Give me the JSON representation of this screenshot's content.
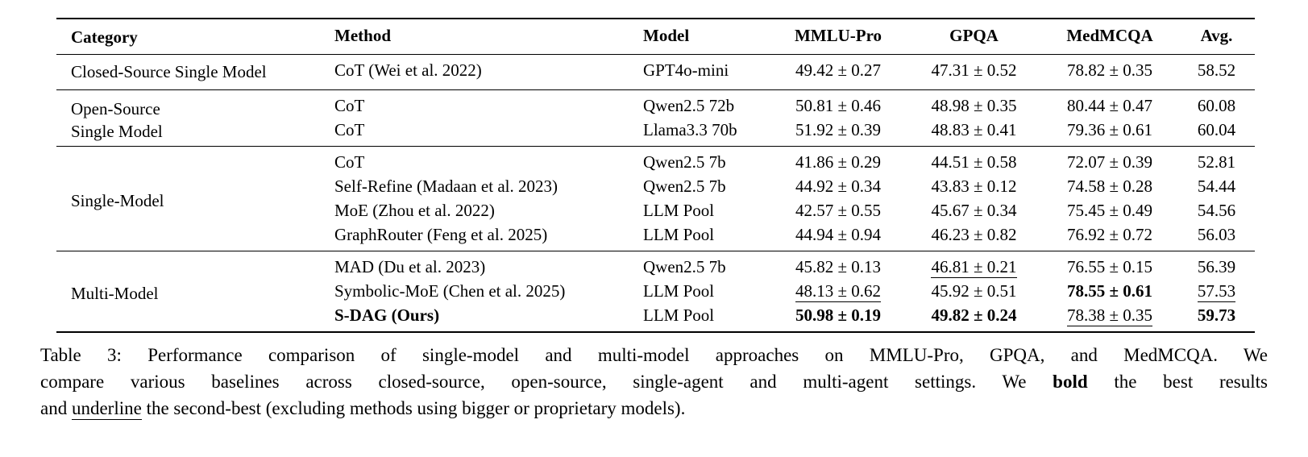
{
  "colors": {
    "background": "#ffffff",
    "text": "#000000",
    "rule": "#000000"
  },
  "table": {
    "headers": [
      "Category",
      "Method",
      "Model",
      "MMLU-Pro",
      "GPQA",
      "MedMCQA",
      "Avg."
    ],
    "groups": [
      {
        "category_lines": [
          "Closed-Source Single Model"
        ],
        "rows": [
          {
            "method": "CoT (Wei et al. 2022)",
            "method_bold": false,
            "model": "GPT4o-mini",
            "scores": [
              {
                "text": "49.42 ± 0.27",
                "bold": false,
                "underline": false
              },
              {
                "text": "47.31 ± 0.52",
                "bold": false,
                "underline": false
              },
              {
                "text": "78.82 ± 0.35",
                "bold": false,
                "underline": false
              },
              {
                "text": "58.52",
                "bold": false,
                "underline": false
              }
            ]
          }
        ]
      },
      {
        "category_lines": [
          "Open-Source",
          "Single Model"
        ],
        "rows": [
          {
            "method": "CoT",
            "method_bold": false,
            "model": "Qwen2.5 72b",
            "scores": [
              {
                "text": "50.81 ± 0.46",
                "bold": false,
                "underline": false
              },
              {
                "text": "48.98 ± 0.35",
                "bold": false,
                "underline": false
              },
              {
                "text": "80.44 ± 0.47",
                "bold": false,
                "underline": false
              },
              {
                "text": "60.08",
                "bold": false,
                "underline": false
              }
            ]
          },
          {
            "method": "CoT",
            "method_bold": false,
            "model": "Llama3.3 70b",
            "scores": [
              {
                "text": "51.92 ± 0.39",
                "bold": false,
                "underline": false
              },
              {
                "text": "48.83 ± 0.41",
                "bold": false,
                "underline": false
              },
              {
                "text": "79.36 ± 0.61",
                "bold": false,
                "underline": false
              },
              {
                "text": "60.04",
                "bold": false,
                "underline": false
              }
            ]
          }
        ]
      },
      {
        "category_lines": [
          "Single-Model"
        ],
        "rows": [
          {
            "method": "CoT",
            "method_bold": false,
            "model": "Qwen2.5 7b",
            "scores": [
              {
                "text": "41.86 ± 0.29",
                "bold": false,
                "underline": false
              },
              {
                "text": "44.51 ± 0.58",
                "bold": false,
                "underline": false
              },
              {
                "text": "72.07 ± 0.39",
                "bold": false,
                "underline": false
              },
              {
                "text": "52.81",
                "bold": false,
                "underline": false
              }
            ]
          },
          {
            "method": "Self-Refine (Madaan et al. 2023)",
            "method_bold": false,
            "model": "Qwen2.5 7b",
            "scores": [
              {
                "text": "44.92 ± 0.34",
                "bold": false,
                "underline": false
              },
              {
                "text": "43.83 ± 0.12",
                "bold": false,
                "underline": false
              },
              {
                "text": "74.58 ± 0.28",
                "bold": false,
                "underline": false
              },
              {
                "text": "54.44",
                "bold": false,
                "underline": false
              }
            ]
          },
          {
            "method": "MoE (Zhou et al. 2022)",
            "method_bold": false,
            "model": "LLM Pool",
            "scores": [
              {
                "text": "42.57 ± 0.55",
                "bold": false,
                "underline": false
              },
              {
                "text": "45.67 ± 0.34",
                "bold": false,
                "underline": false
              },
              {
                "text": "75.45 ± 0.49",
                "bold": false,
                "underline": false
              },
              {
                "text": "54.56",
                "bold": false,
                "underline": false
              }
            ]
          },
          {
            "method": "GraphRouter (Feng et al. 2025)",
            "method_bold": false,
            "model": "LLM Pool",
            "scores": [
              {
                "text": "44.94 ± 0.94",
                "bold": false,
                "underline": false
              },
              {
                "text": "46.23 ± 0.82",
                "bold": false,
                "underline": false
              },
              {
                "text": "76.92 ± 0.72",
                "bold": false,
                "underline": false
              },
              {
                "text": "56.03",
                "bold": false,
                "underline": false
              }
            ]
          }
        ]
      },
      {
        "category_lines": [
          "Multi-Model"
        ],
        "rows": [
          {
            "method": "MAD (Du et al. 2023)",
            "method_bold": false,
            "model": "Qwen2.5 7b",
            "scores": [
              {
                "text": "45.82 ± 0.13",
                "bold": false,
                "underline": false
              },
              {
                "text": "46.81 ± 0.21",
                "bold": false,
                "underline": true
              },
              {
                "text": "76.55 ± 0.15",
                "bold": false,
                "underline": false
              },
              {
                "text": "56.39",
                "bold": false,
                "underline": false
              }
            ]
          },
          {
            "method": "Symbolic-MoE (Chen et al. 2025)",
            "method_bold": false,
            "model": "LLM Pool",
            "scores": [
              {
                "text": "48.13 ± 0.62",
                "bold": false,
                "underline": true
              },
              {
                "text": "45.92 ± 0.51",
                "bold": false,
                "underline": false
              },
              {
                "text": "78.55 ± 0.61",
                "bold": true,
                "underline": false
              },
              {
                "text": "57.53",
                "bold": false,
                "underline": true
              }
            ]
          },
          {
            "method": "S-DAG (Ours)",
            "method_bold": true,
            "model": "LLM Pool",
            "scores": [
              {
                "text": "50.98 ± 0.19",
                "bold": true,
                "underline": false
              },
              {
                "text": "49.82 ± 0.24",
                "bold": true,
                "underline": false
              },
              {
                "text": "78.38 ± 0.35",
                "bold": false,
                "underline": true
              },
              {
                "text": "59.73",
                "bold": true,
                "underline": false
              }
            ]
          }
        ]
      }
    ]
  },
  "caption": {
    "line1": "Table 3: Performance comparison of single-model and multi-model approaches on MMLU-Pro, GPQA, and MedMCQA. We",
    "line2_pre": "compare various baselines across closed-source, open-source, single-agent and multi-agent settings. We ",
    "line2_bold": "bold",
    "line2_post": " the best results",
    "line3_pre": "and ",
    "line3_underline": "underline",
    "line3_post": " the second-best (excluding methods using bigger or proprietary models)."
  }
}
